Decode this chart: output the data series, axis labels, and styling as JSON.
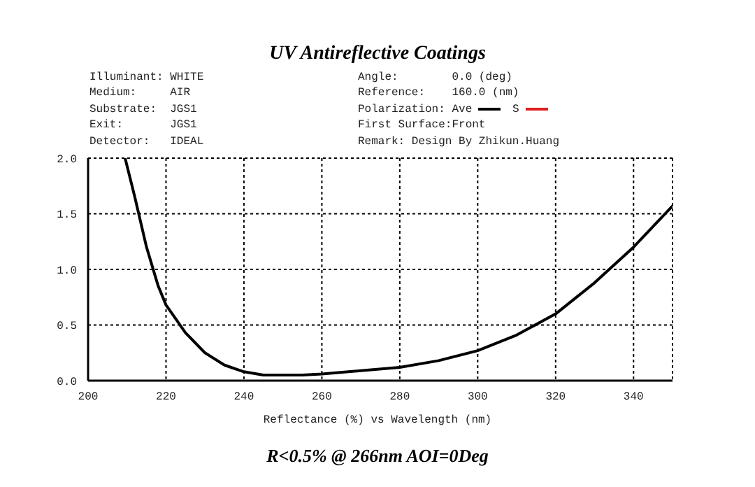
{
  "chart_data": {
    "type": "line",
    "title": "UV Antireflective Coatings",
    "xlabel": "Reflectance (%) vs Wavelength (nm)",
    "legend_title": "Polarization:",
    "legend": "top right",
    "grid": true,
    "line_style": "solid",
    "marker": "none",
    "annotations": [
      "Illuminant: WHITE",
      "Medium:     AIR",
      "Substrate:  JGS1",
      "Exit:       JGS1",
      "Detector:   IDEAL",
      "Angle:        0.0 (deg)",
      "Reference:    160.0 (nm)",
      "First Surface:Front",
      "Remark: Design By Zhikun.Huang",
      "R<0.5% @ 266nm AOI=0Deg"
    ],
    "x": [
      209.5,
      212,
      215,
      218,
      220,
      225,
      230,
      235,
      240,
      245,
      250,
      255,
      260,
      270,
      280,
      290,
      300,
      310,
      320,
      330,
      340,
      350
    ],
    "series": [
      {
        "name": "Ave",
        "color": "#000000",
        "values": [
          2.0,
          1.65,
          1.2,
          0.85,
          0.68,
          0.43,
          0.25,
          0.14,
          0.08,
          0.05,
          0.05,
          0.05,
          0.06,
          0.09,
          0.12,
          0.18,
          0.27,
          0.41,
          0.6,
          0.88,
          1.2,
          1.57
        ]
      },
      {
        "name": "S",
        "color": "#e02020",
        "values": [
          null,
          null,
          null,
          null,
          null,
          null,
          null,
          null,
          null,
          null,
          null,
          null,
          null,
          null,
          null,
          null,
          null,
          null,
          null,
          null,
          null,
          null
        ]
      }
    ],
    "xlim": [
      200,
      350
    ],
    "xticks": [
      200,
      220,
      240,
      260,
      280,
      300,
      320,
      340
    ],
    "ylim": [
      0,
      2
    ],
    "yticks": [
      {
        "value": 0,
        "label": "0.0"
      },
      {
        "value": 0.5,
        "label": "0.5"
      },
      {
        "value": 1,
        "label": "1.0"
      },
      {
        "value": 1.5,
        "label": "1.5"
      },
      {
        "value": 2,
        "label": "2.0"
      }
    ]
  }
}
